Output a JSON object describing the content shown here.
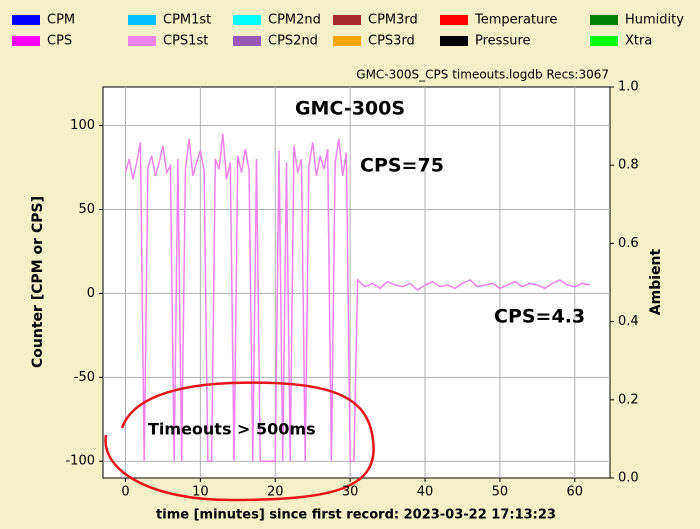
{
  "chart_data": {
    "type": "line",
    "title": "GMC-300S",
    "subtitle": "GMC-300S_CPS timeouts.logdb   Recs:3067",
    "x_label": "time [minutes] since first record: 2023-03-22 17:13:23",
    "y_label": "Counter  [CPM or CPS]",
    "y2_label": "Ambient",
    "annotations": [
      "CPS=75",
      "CPS=4.3",
      "Timeouts > 500ms"
    ],
    "grid": true,
    "xlim": [
      -3,
      64.7
    ],
    "xticks": [
      0,
      10,
      20,
      30,
      40,
      50,
      60
    ],
    "ylim": [
      -110,
      123
    ],
    "yticks": [
      -100,
      -50,
      0,
      50,
      100
    ],
    "y2lim": [
      0,
      1
    ],
    "y2ticks": [
      {
        "value": 0,
        "label": "0.0"
      },
      {
        "value": 0.2,
        "label": "0.2"
      },
      {
        "value": 0.4,
        "label": "0.4"
      },
      {
        "value": 0.6,
        "label": "0.6"
      },
      {
        "value": 0.8,
        "label": "0.8"
      },
      {
        "value": 1,
        "label": "1.0"
      }
    ],
    "series": [
      {
        "name": "CPM",
        "color": "#0000ff",
        "x": [],
        "values": []
      },
      {
        "name": "CPS",
        "color": "#ff00ff",
        "x": [],
        "values": []
      },
      {
        "name": "CPM1st",
        "color": "#00bfff",
        "x": [],
        "values": []
      },
      {
        "name": "CPS1st",
        "color": "#ee82ee",
        "x": [
          0,
          0.5,
          1,
          1.5,
          2,
          2.5,
          3,
          3.5,
          4,
          4.5,
          5,
          5.5,
          6,
          6.5,
          7,
          7.5,
          8,
          8.5,
          9,
          9.5,
          10,
          10.5,
          11,
          11.5,
          12,
          12.5,
          13,
          13.5,
          14,
          14.5,
          15,
          15.5,
          16,
          16.5,
          17,
          17.5,
          18,
          18.5,
          19,
          19.5,
          20,
          20.5,
          21,
          21.5,
          22,
          22.5,
          23,
          23.5,
          24,
          24.5,
          25,
          25.5,
          26,
          26.5,
          27,
          27.5,
          28,
          28.5,
          29,
          29.5,
          30,
          30.5,
          31,
          32,
          33,
          34,
          35,
          36,
          37,
          38,
          39,
          40,
          41,
          42,
          43,
          44,
          45,
          46,
          47,
          48,
          49,
          50,
          51,
          52,
          53,
          54,
          55,
          56,
          57,
          58,
          59,
          60,
          61,
          62
        ],
        "values": [
          72,
          80,
          68,
          78,
          90,
          -100,
          75,
          82,
          70,
          78,
          88,
          72,
          76,
          -100,
          80,
          -100,
          74,
          92,
          70,
          78,
          85,
          73,
          -100,
          -100,
          80,
          74,
          95,
          68,
          78,
          -100,
          82,
          72,
          86,
          74,
          -100,
          80,
          -100,
          -100,
          -100,
          -100,
          -100,
          85,
          -100,
          78,
          -100,
          88,
          72,
          80,
          -100,
          76,
          90,
          70,
          82,
          74,
          86,
          -100,
          78,
          92,
          70,
          84,
          -100,
          -100,
          8,
          4,
          6,
          3,
          7,
          5,
          4,
          6,
          2,
          5,
          7,
          4,
          5,
          3,
          6,
          8,
          4,
          5,
          6,
          3,
          5,
          7,
          4,
          6,
          5,
          3,
          6,
          8,
          5,
          4,
          6,
          5
        ]
      },
      {
        "name": "CPM2nd",
        "color": "#00ffff",
        "x": [],
        "values": []
      },
      {
        "name": "CPS2nd",
        "color": "#9b59b6",
        "x": [],
        "values": []
      },
      {
        "name": "CPM3rd",
        "color": "#a52a2a",
        "x": [],
        "values": []
      },
      {
        "name": "CPS3rd",
        "color": "#ffa500",
        "x": [],
        "values": []
      },
      {
        "name": "Temperature",
        "color": "#ff0000",
        "x": [],
        "values": []
      },
      {
        "name": "Pressure",
        "color": "#000000",
        "x": [],
        "values": []
      },
      {
        "name": "Humidity",
        "color": "#008000",
        "x": [],
        "values": []
      },
      {
        "name": "Xtra",
        "color": "#00ff00",
        "x": [],
        "values": []
      }
    ]
  }
}
